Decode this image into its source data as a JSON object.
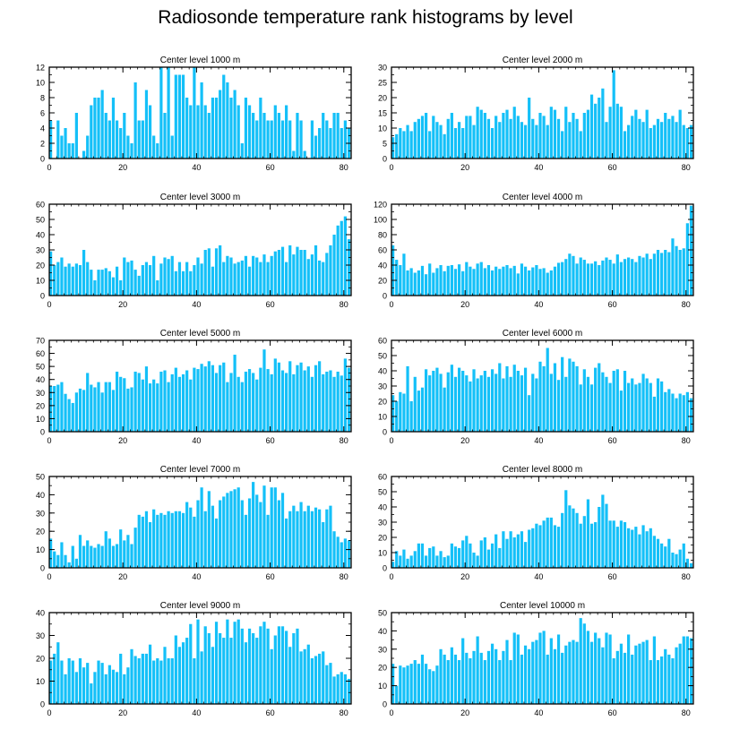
{
  "title": "Radiosonde temperature rank histograms by level",
  "bar_color": "#14c0f8",
  "axis_color": "#000000",
  "chart_data": [
    {
      "type": "bar",
      "title": "Center level 1000 m",
      "xlim": [
        0,
        82
      ],
      "ylim": [
        0,
        12
      ],
      "xticks": [
        0,
        20,
        40,
        60,
        80
      ],
      "yticks": [
        0,
        2,
        4,
        6,
        8,
        10,
        12
      ],
      "values": [
        5,
        0,
        5,
        3,
        4,
        2,
        2,
        6,
        0,
        1,
        3,
        7,
        8,
        8,
        9,
        6,
        5,
        8,
        5,
        4,
        6,
        3,
        2,
        10,
        5,
        5,
        9,
        7,
        3,
        2,
        12,
        6,
        12,
        3,
        11,
        11,
        11,
        8,
        7,
        12,
        7,
        10,
        7,
        6,
        8,
        8,
        9,
        11,
        10,
        8,
        9,
        7,
        2,
        8,
        7,
        6,
        5,
        8,
        6,
        5,
        5,
        7,
        6,
        5,
        7,
        5,
        1,
        6,
        5,
        1,
        0,
        5,
        3,
        4,
        6,
        5,
        4,
        6,
        6,
        4,
        5,
        4
      ]
    },
    {
      "type": "bar",
      "title": "Center level 2000 m",
      "xlim": [
        0,
        82
      ],
      "ylim": [
        0,
        30
      ],
      "xticks": [
        0,
        20,
        40,
        60,
        80
      ],
      "yticks": [
        0,
        5,
        10,
        15,
        20,
        25,
        30
      ],
      "values": [
        7,
        8,
        10,
        9,
        11,
        9,
        12,
        13,
        14,
        15,
        9,
        14,
        12,
        11,
        8,
        13,
        15,
        10,
        12,
        10,
        14,
        14,
        11,
        17,
        16,
        15,
        13,
        10,
        14,
        12,
        15,
        16,
        13,
        17,
        14,
        12,
        11,
        20,
        13,
        11,
        15,
        14,
        11,
        17,
        16,
        13,
        9,
        17,
        12,
        15,
        13,
        9,
        15,
        16,
        21,
        18,
        20,
        23,
        12,
        17,
        29,
        18,
        17,
        9,
        11,
        14,
        16,
        13,
        12,
        16,
        10,
        11,
        13,
        12,
        15,
        13,
        14,
        12,
        16,
        11,
        10,
        11
      ]
    },
    {
      "type": "bar",
      "title": "Center level 3000 m",
      "xlim": [
        0,
        82
      ],
      "ylim": [
        0,
        60
      ],
      "xticks": [
        0,
        20,
        40,
        60,
        80
      ],
      "yticks": [
        0,
        10,
        20,
        30,
        40,
        50,
        60
      ],
      "values": [
        29,
        20,
        22,
        25,
        19,
        21,
        19,
        21,
        20,
        30,
        22,
        17,
        10,
        17,
        17,
        18,
        16,
        12,
        19,
        10,
        25,
        22,
        23,
        17,
        13,
        20,
        22,
        20,
        26,
        10,
        21,
        25,
        24,
        26,
        16,
        22,
        16,
        22,
        16,
        20,
        25,
        21,
        30,
        31,
        19,
        31,
        33,
        22,
        26,
        25,
        21,
        22,
        23,
        26,
        19,
        26,
        25,
        22,
        27,
        22,
        26,
        29,
        30,
        32,
        22,
        33,
        27,
        32,
        30,
        30,
        24,
        27,
        33,
        23,
        22,
        28,
        33,
        40,
        46,
        49,
        52,
        37
      ]
    },
    {
      "type": "bar",
      "title": "Center level 4000 m",
      "xlim": [
        0,
        82
      ],
      "ylim": [
        0,
        120
      ],
      "xticks": [
        0,
        20,
        40,
        60,
        80
      ],
      "yticks": [
        0,
        20,
        40,
        60,
        80,
        100,
        120
      ],
      "values": [
        66,
        47,
        40,
        55,
        33,
        36,
        30,
        33,
        39,
        28,
        42,
        30,
        36,
        40,
        32,
        39,
        40,
        35,
        41,
        32,
        44,
        38,
        35,
        42,
        44,
        36,
        40,
        33,
        38,
        35,
        38,
        40,
        36,
        39,
        29,
        42,
        38,
        33,
        37,
        40,
        35,
        36,
        30,
        33,
        38,
        43,
        44,
        48,
        55,
        52,
        42,
        50,
        47,
        42,
        42,
        45,
        40,
        46,
        50,
        47,
        42,
        54,
        44,
        48,
        50,
        48,
        44,
        52,
        50,
        55,
        48,
        55,
        60,
        56,
        60,
        57,
        75,
        65,
        60,
        62,
        95,
        118
      ]
    },
    {
      "type": "bar",
      "title": "Center level 5000 m",
      "xlim": [
        0,
        82
      ],
      "ylim": [
        0,
        70
      ],
      "xticks": [
        0,
        20,
        40,
        60,
        80
      ],
      "yticks": [
        0,
        10,
        20,
        30,
        40,
        50,
        60,
        70
      ],
      "values": [
        35,
        35,
        36,
        38,
        29,
        25,
        22,
        30,
        33,
        32,
        45,
        36,
        34,
        38,
        30,
        38,
        38,
        32,
        46,
        42,
        41,
        33,
        34,
        46,
        45,
        40,
        50,
        37,
        40,
        37,
        46,
        47,
        38,
        44,
        49,
        42,
        44,
        47,
        40,
        49,
        48,
        52,
        50,
        54,
        51,
        45,
        51,
        53,
        38,
        45,
        59,
        42,
        38,
        46,
        48,
        45,
        40,
        49,
        63,
        48,
        44,
        56,
        53,
        47,
        45,
        54,
        44,
        51,
        53,
        47,
        50,
        42,
        51,
        54,
        44,
        46,
        47,
        42,
        46,
        43,
        56,
        49
      ]
    },
    {
      "type": "bar",
      "title": "Center level 6000 m",
      "xlim": [
        0,
        82
      ],
      "ylim": [
        0,
        60
      ],
      "xticks": [
        0,
        20,
        40,
        60,
        80
      ],
      "yticks": [
        0,
        10,
        20,
        30,
        40,
        50,
        60
      ],
      "values": [
        24,
        20,
        26,
        25,
        43,
        20,
        36,
        27,
        29,
        41,
        37,
        40,
        42,
        38,
        29,
        39,
        44,
        36,
        42,
        40,
        37,
        33,
        41,
        35,
        37,
        40,
        36,
        41,
        38,
        45,
        35,
        43,
        36,
        44,
        40,
        37,
        42,
        24,
        38,
        35,
        46,
        43,
        55,
        38,
        45,
        34,
        49,
        36,
        48,
        46,
        43,
        31,
        41,
        36,
        31,
        42,
        45,
        39,
        36,
        32,
        40,
        41,
        27,
        40,
        32,
        35,
        31,
        32,
        38,
        35,
        32,
        23,
        35,
        33,
        26,
        28,
        25,
        22,
        25,
        24,
        26,
        22
      ]
    },
    {
      "type": "bar",
      "title": "Center level 7000 m",
      "xlim": [
        0,
        82
      ],
      "ylim": [
        0,
        50
      ],
      "xticks": [
        0,
        20,
        40,
        60,
        80
      ],
      "yticks": [
        0,
        10,
        20,
        30,
        40,
        50
      ],
      "values": [
        16,
        9,
        7,
        14,
        7,
        3,
        12,
        5,
        18,
        12,
        15,
        12,
        11,
        13,
        12,
        20,
        16,
        12,
        13,
        21,
        15,
        18,
        13,
        22,
        29,
        28,
        31,
        25,
        32,
        29,
        30,
        29,
        31,
        30,
        31,
        31,
        30,
        36,
        33,
        28,
        37,
        44,
        31,
        42,
        34,
        27,
        37,
        39,
        41,
        42,
        43,
        44,
        37,
        29,
        38,
        47,
        40,
        36,
        45,
        29,
        44,
        44,
        37,
        41,
        27,
        31,
        34,
        31,
        36,
        31,
        34,
        31,
        33,
        32,
        25,
        32,
        34,
        20,
        17,
        14,
        16,
        15
      ]
    },
    {
      "type": "bar",
      "title": "Center level 8000 m",
      "xlim": [
        0,
        82
      ],
      "ylim": [
        0,
        60
      ],
      "xticks": [
        0,
        20,
        40,
        60,
        80
      ],
      "yticks": [
        0,
        10,
        20,
        30,
        40,
        50,
        60
      ],
      "values": [
        4,
        11,
        8,
        12,
        6,
        8,
        11,
        16,
        16,
        8,
        13,
        14,
        8,
        11,
        7,
        8,
        16,
        14,
        13,
        18,
        21,
        16,
        10,
        8,
        18,
        20,
        12,
        16,
        22,
        13,
        24,
        19,
        24,
        20,
        22,
        24,
        17,
        25,
        26,
        29,
        28,
        31,
        33,
        33,
        28,
        27,
        36,
        51,
        41,
        39,
        36,
        29,
        34,
        45,
        29,
        30,
        40,
        48,
        42,
        31,
        31,
        27,
        31,
        30,
        26,
        25,
        27,
        22,
        28,
        24,
        26,
        21,
        19,
        16,
        14,
        19,
        10,
        9,
        12,
        16,
        6,
        3
      ]
    },
    {
      "type": "bar",
      "title": "Center level 9000 m",
      "xlim": [
        0,
        82
      ],
      "ylim": [
        0,
        40
      ],
      "xticks": [
        0,
        20,
        40,
        60,
        80
      ],
      "yticks": [
        0,
        10,
        20,
        30,
        40
      ],
      "values": [
        19,
        22,
        27,
        19,
        13,
        20,
        19,
        14,
        20,
        16,
        18,
        9,
        14,
        19,
        18,
        13,
        17,
        15,
        14,
        22,
        13,
        16,
        24,
        21,
        20,
        22,
        22,
        26,
        19,
        20,
        19,
        25,
        20,
        20,
        30,
        25,
        27,
        29,
        35,
        20,
        37,
        23,
        34,
        31,
        25,
        36,
        31,
        29,
        37,
        29,
        36,
        37,
        33,
        27,
        33,
        31,
        29,
        34,
        36,
        33,
        24,
        30,
        34,
        34,
        32,
        25,
        31,
        33,
        23,
        24,
        26,
        20,
        21,
        22,
        23,
        17,
        18,
        12,
        13,
        14,
        13,
        11
      ]
    },
    {
      "type": "bar",
      "title": "Center level 10000 m",
      "xlim": [
        0,
        82
      ],
      "ylim": [
        0,
        50
      ],
      "xticks": [
        0,
        20,
        40,
        60,
        80
      ],
      "yticks": [
        0,
        10,
        20,
        30,
        40,
        50
      ],
      "values": [
        22,
        10,
        21,
        20,
        21,
        22,
        24,
        22,
        27,
        22,
        19,
        18,
        21,
        30,
        27,
        24,
        31,
        27,
        24,
        36,
        28,
        25,
        29,
        37,
        28,
        24,
        29,
        33,
        30,
        24,
        29,
        35,
        24,
        39,
        38,
        27,
        32,
        30,
        34,
        35,
        39,
        40,
        27,
        36,
        30,
        38,
        28,
        32,
        34,
        35,
        34,
        47,
        44,
        40,
        34,
        39,
        36,
        31,
        39,
        38,
        25,
        29,
        33,
        28,
        38,
        27,
        32,
        33,
        34,
        35,
        24,
        37,
        24,
        26,
        30,
        27,
        25,
        31,
        33,
        37,
        37,
        36
      ]
    }
  ]
}
